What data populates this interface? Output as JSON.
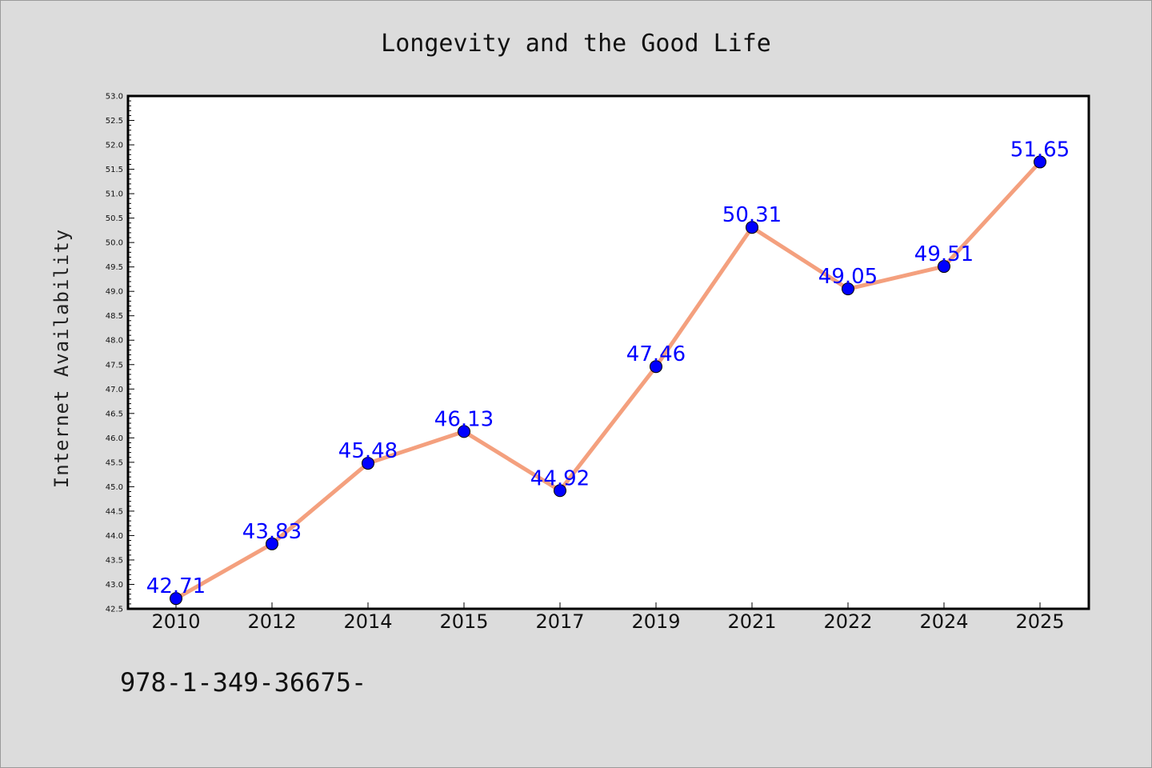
{
  "chart_data": {
    "type": "line",
    "title": "Longevity and the Good Life",
    "xlabel": "",
    "ylabel": "Internet Availability",
    "categories": [
      "2010",
      "2012",
      "2014",
      "2015",
      "2017",
      "2019",
      "2021",
      "2022",
      "2024",
      "2025"
    ],
    "series": [
      {
        "values": [
          42.71,
          43.83,
          45.48,
          46.13,
          44.92,
          47.46,
          50.31,
          49.05,
          49.51,
          51.65
        ],
        "data_labels": [
          "42.71",
          "43.83",
          "45.48",
          "46.13",
          "44.92",
          "47.46",
          "50.31",
          "49.05",
          "49.51",
          "51.65"
        ]
      }
    ],
    "ylim": [
      42.5,
      53.0
    ],
    "yticks": [
      "42.5",
      "43.0",
      "43.5",
      "44.0",
      "44.5",
      "45.0",
      "45.5",
      "46.0",
      "46.5",
      "47.0",
      "47.5",
      "48.0",
      "48.5",
      "49.0",
      "49.5",
      "50.0",
      "50.5",
      "51.0",
      "51.5",
      "52.0",
      "52.5",
      "53.0"
    ],
    "grid": false,
    "legend": "none",
    "colors": {
      "line": "#f4a07e",
      "marker": "#0000ff",
      "data_label": "#0000ff",
      "background": "#dcdcdc",
      "plot_background": "#ffffff"
    }
  },
  "footer": {
    "isbn": "978-1-349-36675-"
  }
}
